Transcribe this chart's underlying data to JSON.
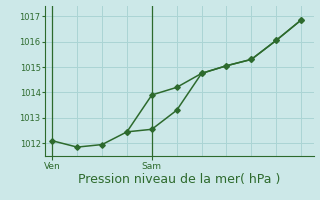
{
  "bg_color": "#cce8e8",
  "plot_bg_color": "#cce8e8",
  "grid_color": "#aad4d4",
  "line_color": "#2d6a2d",
  "marker_color": "#2d6a2d",
  "xlabel": "Pression niveau de la mer( hPa )",
  "xlabel_fontsize": 9,
  "yticks": [
    1012,
    1013,
    1014,
    1015,
    1016,
    1017
  ],
  "ylim": [
    1011.5,
    1017.4
  ],
  "xlim": [
    -0.3,
    10.5
  ],
  "xtick_labels": [
    "Ven",
    "Sam"
  ],
  "xtick_positions": [
    0,
    4
  ],
  "series1_x": [
    0,
    1,
    2,
    3,
    4,
    5,
    6,
    7,
    8,
    9,
    10
  ],
  "series1_y": [
    1012.1,
    1011.85,
    1011.95,
    1012.45,
    1013.9,
    1014.2,
    1014.75,
    1015.05,
    1015.3,
    1016.05,
    1016.85
  ],
  "series2_x": [
    3,
    4,
    5,
    6,
    7,
    8,
    9,
    10
  ],
  "series2_y": [
    1012.45,
    1012.55,
    1013.3,
    1014.75,
    1015.05,
    1015.3,
    1016.05,
    1016.85
  ],
  "vline_positions": [
    0,
    4
  ],
  "vline_color": "#2d6a2d",
  "spine_color": "#2d6a2d",
  "tick_label_color": "#2d6a2d",
  "xlabel_color": "#2d6a2d"
}
